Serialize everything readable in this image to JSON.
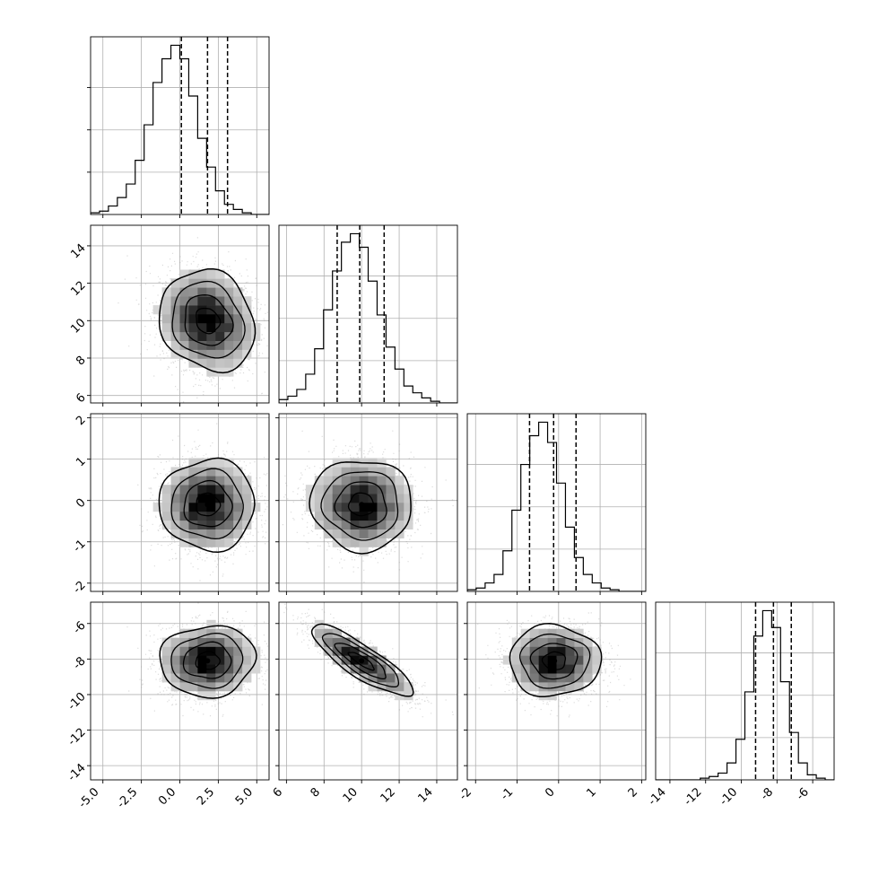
{
  "chart_data": {
    "type": "corner",
    "parameters": 4,
    "colors": {
      "ink": "#000000",
      "grid": "#b0b0b0",
      "density_dark": "#000000",
      "scatter": "#9a9a9a"
    },
    "grid": true,
    "quantile_lines": "dashed",
    "x_ticks": [
      [
        "-5.0",
        "-2.5",
        "0.0",
        "2.5",
        "5.0"
      ],
      [
        "6",
        "8",
        "10",
        "12",
        "14"
      ],
      [
        "-2",
        "-1",
        "0",
        "1",
        "2"
      ],
      [
        "-14",
        "-12",
        "-10",
        "-8",
        "-6"
      ]
    ],
    "y_ticks": {
      "row1": [
        "6",
        "8",
        "10",
        "12",
        "14"
      ],
      "row2": [
        "-2",
        "-1",
        "0",
        "1",
        "2"
      ],
      "row3": [
        "-14",
        "-12",
        "-10",
        "-8",
        "-6"
      ]
    },
    "ranges": [
      [
        -5.8,
        5.8
      ],
      [
        5.6,
        15.1
      ],
      [
        -2.2,
        2.1
      ],
      [
        -14.8,
        -4.8
      ]
    ],
    "tick_values": [
      [
        -5,
        -2.5,
        0,
        2.5,
        5
      ],
      [
        6,
        8,
        10,
        12,
        14
      ],
      [
        -2,
        -1,
        0,
        1,
        2
      ],
      [
        -14,
        -12,
        -10,
        -8,
        -6
      ]
    ],
    "distributions": [
      {
        "mean": 1.8,
        "sd": 1.55
      },
      {
        "mean": 10.0,
        "sd": 1.35
      },
      {
        "mean": -0.1,
        "sd": 0.55
      },
      {
        "mean": -8.1,
        "sd": 1.0
      }
    ],
    "quantiles": [
      [
        0.1,
        1.8,
        3.1
      ],
      [
        8.7,
        9.9,
        11.2
      ],
      [
        -0.7,
        -0.12,
        0.42
      ],
      [
        -9.2,
        -8.2,
        -7.2
      ]
    ],
    "correlations": {
      "1-0": -0.15,
      "2-0": 0.0,
      "2-1": -0.03,
      "3-0": 0.05,
      "3-1": -0.85,
      "3-2": 0.0
    },
    "histograms": [
      {
        "bins": 20,
        "range": [
          -5.8,
          5.8
        ],
        "counts": [
          1,
          2,
          5,
          10,
          18,
          32,
          53,
          78,
          92,
          100,
          92,
          70,
          45,
          28,
          14,
          6,
          3,
          1,
          0,
          0
        ]
      },
      {
        "bins": 20,
        "range": [
          5.6,
          15.1
        ],
        "counts": [
          2,
          4,
          8,
          17,
          32,
          55,
          78,
          95,
          100,
          92,
          72,
          52,
          33,
          20,
          10,
          6,
          3,
          1,
          0,
          0
        ]
      },
      {
        "bins": 20,
        "range": [
          -2.2,
          2.1
        ],
        "counts": [
          1,
          2,
          5,
          10,
          24,
          48,
          75,
          92,
          100,
          88,
          64,
          38,
          20,
          10,
          5,
          2,
          1,
          0,
          0,
          0
        ]
      },
      {
        "bins": 20,
        "range": [
          -14.8,
          -4.8
        ],
        "counts": [
          0,
          0,
          0,
          0,
          0,
          1,
          2,
          4,
          10,
          24,
          52,
          85,
          100,
          90,
          58,
          28,
          10,
          3,
          1,
          0
        ]
      }
    ]
  }
}
